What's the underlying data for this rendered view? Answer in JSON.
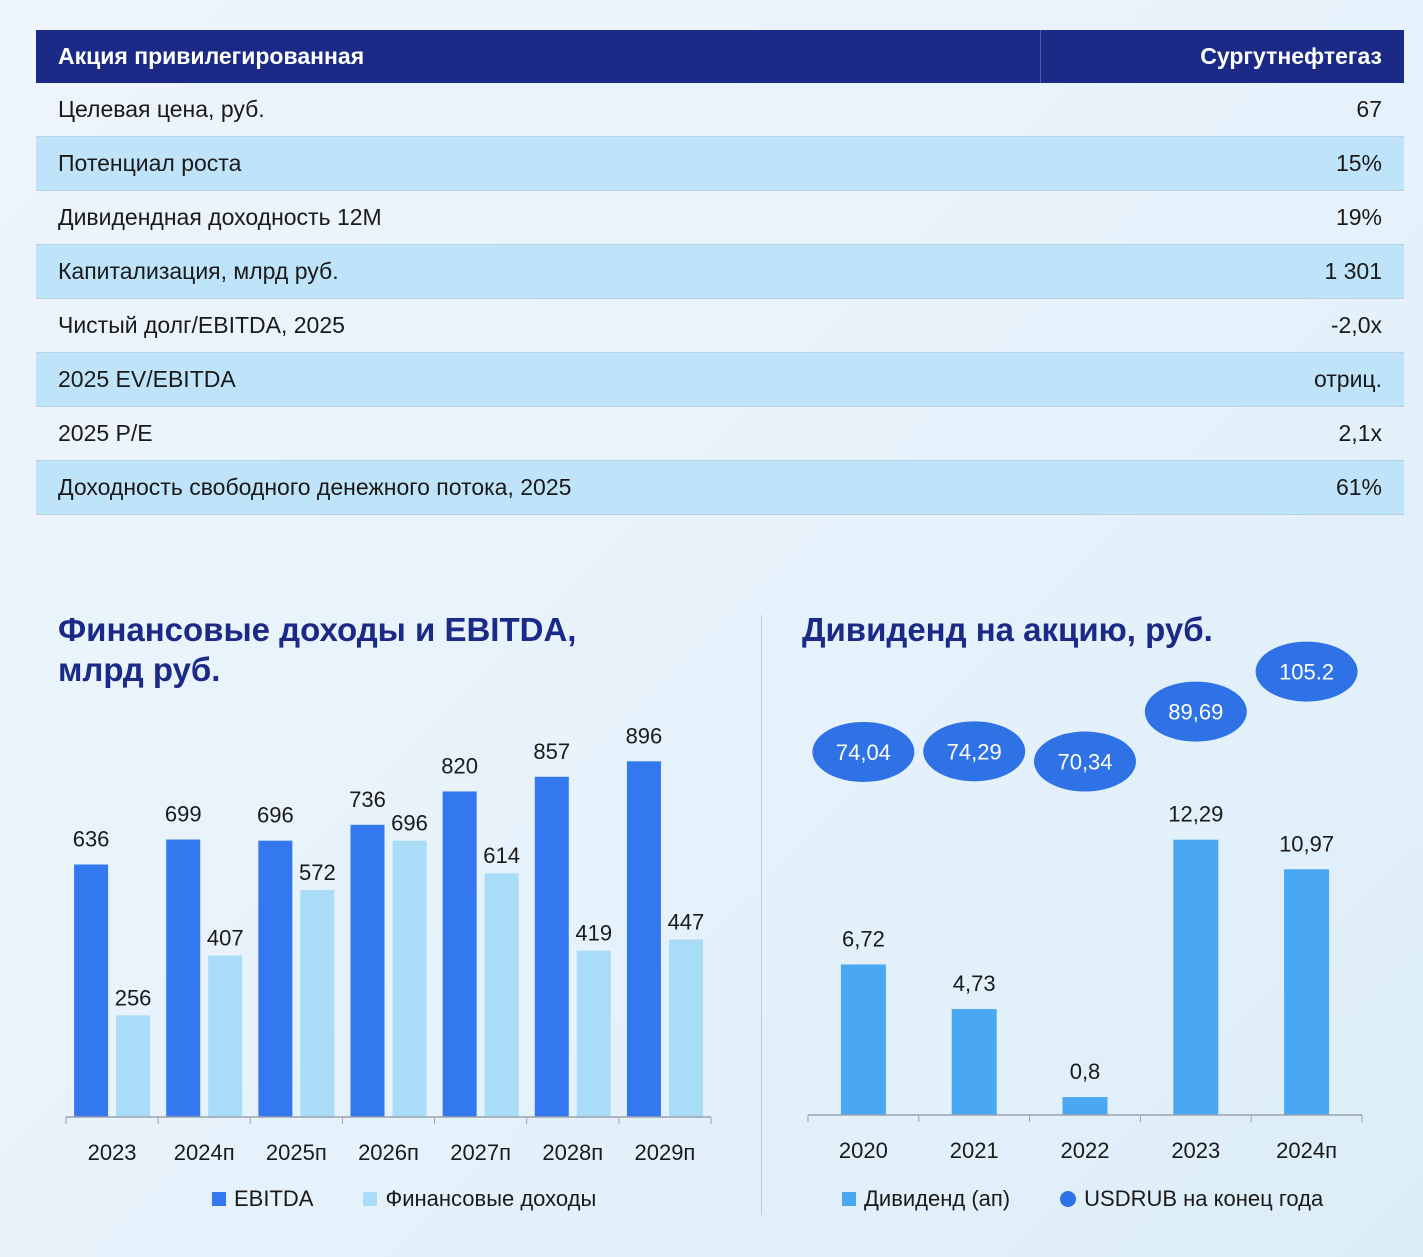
{
  "table": {
    "header": {
      "label": "Акция привилегированная",
      "value": "Сургутнефтегаз"
    },
    "rows": [
      {
        "label": "Целевая цена, руб.",
        "value": "67"
      },
      {
        "label": "Потенциал роста",
        "value": "15%"
      },
      {
        "label": "Дивидендная доходность 12М",
        "value": "19%"
      },
      {
        "label": "Капитализация, млрд руб.",
        "value": "1 301"
      },
      {
        "label": "Чистый долг/EBITDA, 2025",
        "value": "-2,0x"
      },
      {
        "label": "2025 EV/EBITDA",
        "value": "отриц."
      },
      {
        "label": "2025 P/E",
        "value": "2,1x"
      },
      {
        "label": "Доходность свободного денежного потока, 2025",
        "value": "61%"
      }
    ]
  },
  "chart_data": [
    {
      "type": "bar",
      "title_line1": "Финансовые доходы и EBITDA,",
      "title_line2": "млрд руб.",
      "categories": [
        "2023",
        "2024п",
        "2025п",
        "2026п",
        "2027п",
        "2028п",
        "2029п"
      ],
      "series": [
        {
          "name": "EBITDA",
          "values": [
            636,
            699,
            696,
            736,
            820,
            857,
            896
          ],
          "labels": [
            "636",
            "699",
            "696",
            "736",
            "820",
            "857",
            "896"
          ],
          "color": "#3478f0"
        },
        {
          "name": "Финансовые доходы",
          "values": [
            256,
            407,
            572,
            696,
            614,
            419,
            447
          ],
          "labels": [
            "256",
            "407",
            "572",
            "696",
            "614",
            "419",
            "447"
          ],
          "color": "#a9dcf6"
        }
      ],
      "ylim": [
        0,
        1000
      ],
      "legend": "bottom"
    },
    {
      "type": "bar",
      "title": "Дивиденд на акцию, руб.",
      "categories": [
        "2020",
        "2021",
        "2022",
        "2023",
        "2024п"
      ],
      "series": [
        {
          "name": "Дивиденд (ап)",
          "values": [
            6.72,
            4.73,
            0.8,
            12.29,
            10.97
          ],
          "labels": [
            "6,72",
            "4,73",
            "0,8",
            "12,29",
            "10,97"
          ],
          "color": "#4aa8f2"
        },
        {
          "name": "USDRUB на конец года",
          "values": [
            74.04,
            74.29,
            70.34,
            89.69,
            105.2
          ],
          "labels": [
            "74,04",
            "74,29",
            "70,34",
            "89,69",
            "105.2"
          ],
          "color": "#2e72e6"
        }
      ],
      "legend": "bottom"
    }
  ]
}
